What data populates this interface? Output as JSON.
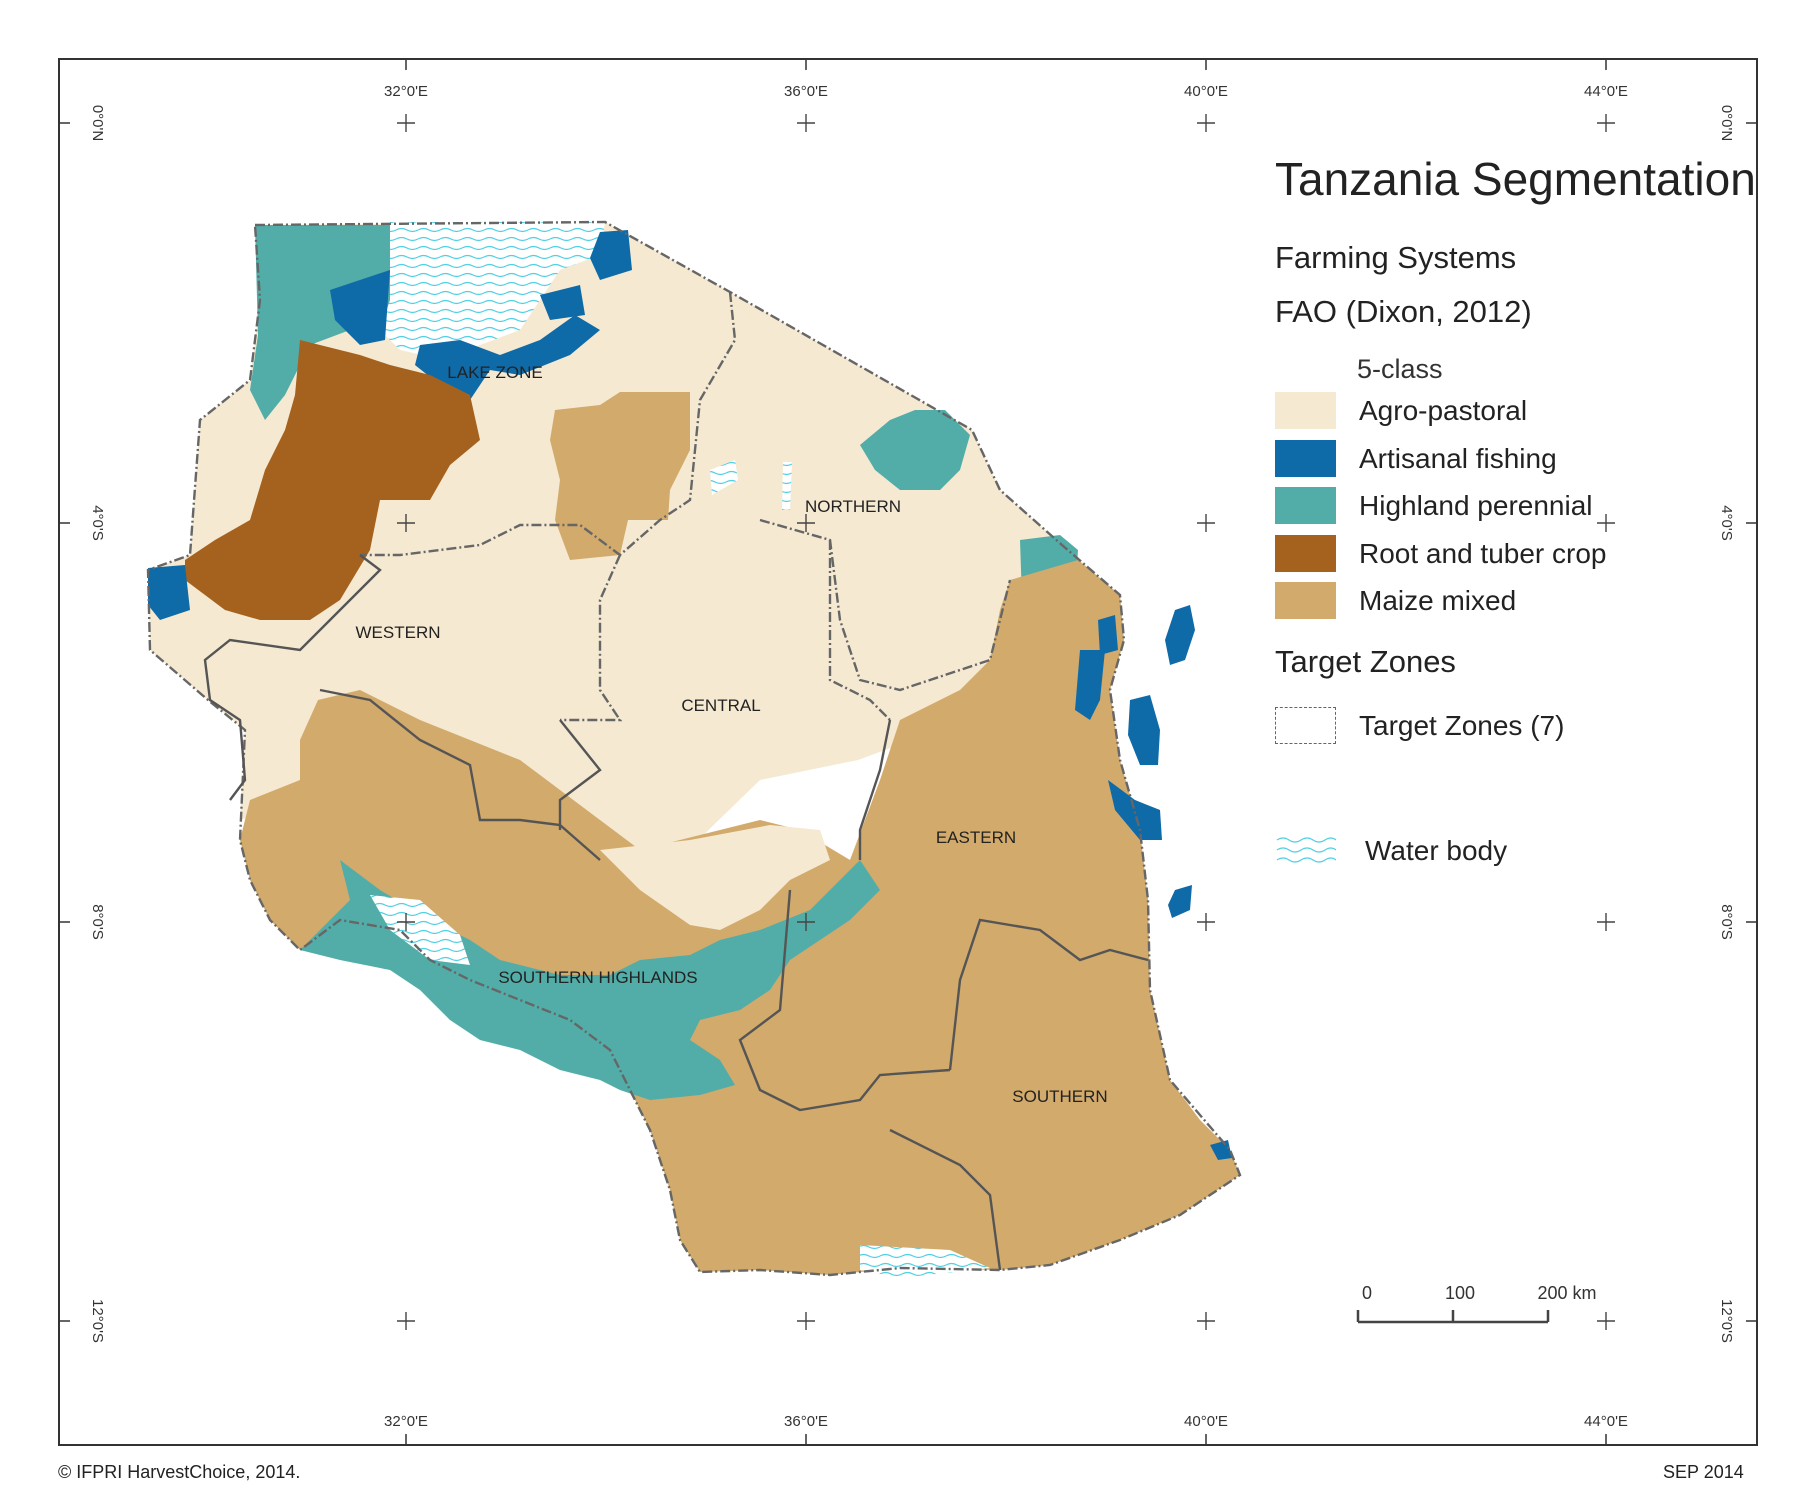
{
  "map": {
    "title": "Tanzania Segmentation",
    "subtitle1": "Farming Systems",
    "subtitle2": "FAO (Dixon, 2012)",
    "legend": {
      "class_heading": "5-class",
      "classes": [
        {
          "label": "Agro-pastoral",
          "color": "#f5e9d1"
        },
        {
          "label": "Artisanal fishing",
          "color": "#0f6aa8"
        },
        {
          "label": "Highland perennial",
          "color": "#52ada8"
        },
        {
          "label": "Root and tuber crop",
          "color": "#a5621f"
        },
        {
          "label": "Maize mixed",
          "color": "#d2aa6b"
        }
      ],
      "zones_heading": "Target Zones",
      "zones_label": "Target Zones (7)",
      "water_label": "Water body",
      "water_color": "#4ecfe3"
    },
    "zones": [
      "LAKE ZONE",
      "NORTHERN",
      "WESTERN",
      "CENTRAL",
      "EASTERN",
      "SOUTHERN HIGHLANDS",
      "SOUTHERN"
    ],
    "graticule": {
      "lon_labels": [
        "32°0'E",
        "36°0'E",
        "40°0'E",
        "44°0'E"
      ],
      "lat_labels": [
        "0°0'N",
        "4°0'S",
        "8°0'S",
        "12°0'S"
      ]
    },
    "scale_bar": {
      "labels": [
        "0",
        "100",
        "200 km"
      ]
    },
    "credit": "© IFPRI HarvestChoice, 2014.",
    "date": "SEP 2014"
  }
}
